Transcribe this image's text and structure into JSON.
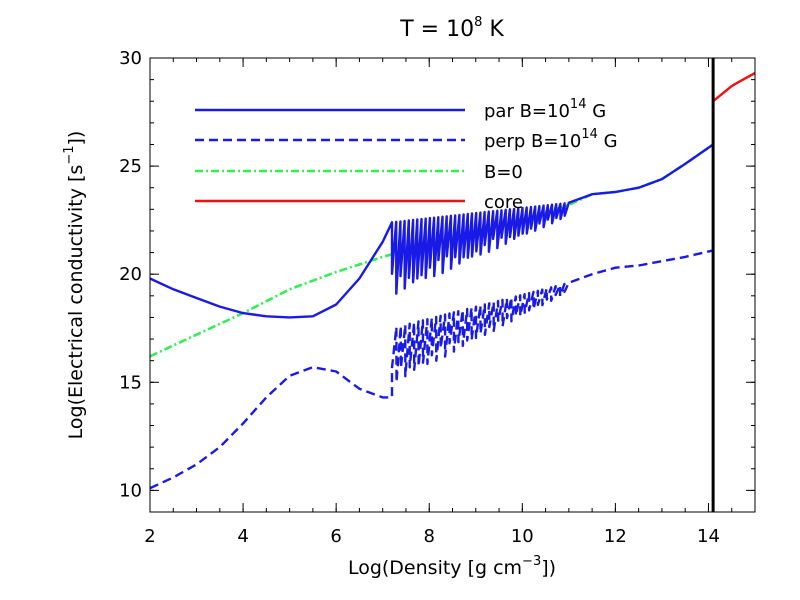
{
  "chart_data": {
    "type": "line",
    "title": {
      "prefix": "T = 10",
      "exp": "8",
      "suffix": " K"
    },
    "xlabel": {
      "prefix": "Log(Density [g cm",
      "exp": "−3",
      "suffix": "])"
    },
    "ylabel": {
      "prefix": "Log(Electrical conductivity [s",
      "exp": "−1",
      "suffix": "])"
    },
    "xlim": [
      2,
      15
    ],
    "ylim": [
      9,
      30
    ],
    "xticks": [
      "2",
      "4",
      "6",
      "8",
      "10",
      "12",
      "14"
    ],
    "yticks": [
      "10",
      "15",
      "20",
      "25",
      "30"
    ],
    "vline_x": 14.1,
    "legend_position": "upper-left",
    "series": [
      {
        "name": {
          "prefix": "par B=10",
          "exp": "14",
          "suffix": " G"
        },
        "color": "#1a1ae6",
        "style": "solid",
        "x": [
          2,
          2.5,
          3,
          3.5,
          4,
          4.5,
          5,
          5.5,
          6,
          6.5,
          7,
          7.2
        ],
        "y": [
          19.8,
          19.3,
          18.9,
          18.5,
          18.2,
          18.05,
          18.0,
          18.05,
          18.6,
          19.8,
          21.5,
          22.4
        ],
        "oscillations": {
          "start": 7.2,
          "end": 11.0,
          "upper_start": 22.4,
          "upper_end": 23.3,
          "drop_start": 3.4,
          "drop_end": 0.6,
          "count": 42
        },
        "tail_x": [
          11.0,
          11.5,
          12.0,
          12.5,
          13.0,
          13.5,
          14.1
        ],
        "tail_y": [
          23.3,
          23.7,
          23.8,
          24.0,
          24.4,
          25.1,
          26.0
        ]
      },
      {
        "name": {
          "prefix": "perp B=10",
          "exp": "14",
          "suffix": " G"
        },
        "color": "#1a1ae6",
        "style": "dashed",
        "x": [
          2,
          2.5,
          3,
          3.5,
          4,
          4.5,
          5,
          5.5,
          6,
          6.5,
          7,
          7.2
        ],
        "y": [
          10.1,
          10.6,
          11.2,
          12.0,
          13.1,
          14.3,
          15.3,
          15.7,
          15.5,
          14.7,
          14.3,
          14.3
        ],
        "oscillations": {
          "start": 7.2,
          "end": 11.0,
          "upper_start": 17.5,
          "upper_end": 19.6,
          "drop_start": 2.6,
          "drop_end": 0.4,
          "count": 40
        },
        "tail_x": [
          11.0,
          11.5,
          12.0,
          12.5,
          13.0,
          13.5,
          14.1
        ],
        "tail_y": [
          19.6,
          20.0,
          20.3,
          20.4,
          20.6,
          20.8,
          21.1
        ]
      },
      {
        "name": {
          "prefix": "B=0",
          "exp": "",
          "suffix": ""
        },
        "color": "#33ee55",
        "style": "dashdot",
        "x": [
          2,
          3,
          4,
          5,
          6,
          7,
          8,
          9,
          10,
          11,
          11.5,
          12,
          12.5,
          13,
          13.5,
          14.1
        ],
        "y": [
          16.2,
          17.2,
          18.2,
          19.3,
          20.1,
          20.8,
          21.4,
          22.0,
          22.5,
          23.2,
          23.7,
          23.8,
          24.0,
          24.4,
          25.1,
          26.0
        ]
      },
      {
        "name": {
          "prefix": "core",
          "exp": "",
          "suffix": ""
        },
        "color": "#ee1111",
        "style": "solid",
        "x": [
          14.1,
          14.3,
          14.5,
          14.7,
          15.0
        ],
        "y": [
          28.0,
          28.35,
          28.7,
          28.95,
          29.3
        ]
      }
    ]
  }
}
